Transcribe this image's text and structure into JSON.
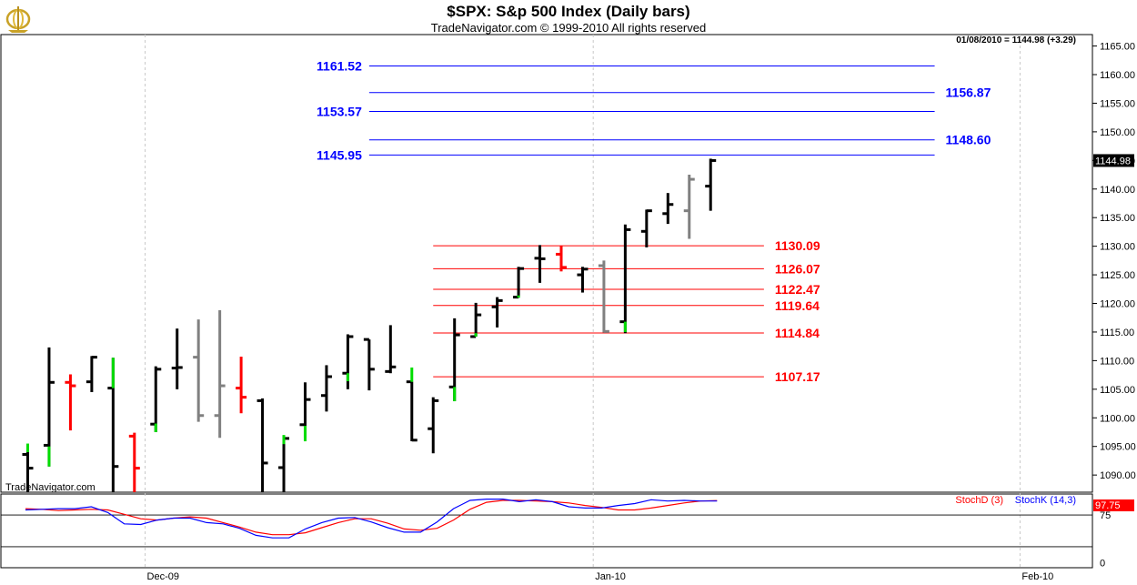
{
  "header": {
    "title": "$SPX:  S&p 500 Index  (Daily bars)",
    "subtitle": "TradeNavigator.com © 1999-2010 All rights reserved",
    "status": "01/08/2010 = 1144.98 (+3.29)",
    "watermark": "TradeNavigator.com",
    "logo_icon": "gyroscope-logo"
  },
  "chart_data": [
    {
      "type": "ohlc",
      "name": "price-panel",
      "ylim": [
        1087,
        1167
      ],
      "y_ticks": [
        "1165.00",
        "1160.00",
        "1155.00",
        "1150.00",
        "1145.00",
        "1140.00",
        "1135.00",
        "1130.00",
        "1125.00",
        "1120.00",
        "1115.00",
        "1110.00",
        "1105.00",
        "1100.00",
        "1095.00",
        "1090.00"
      ],
      "last_price_label": "1144.98",
      "x_labels": [
        {
          "label": "Dec-09",
          "bar": 5.5
        },
        {
          "label": "Jan-10",
          "bar": 26.5
        },
        {
          "label": "Feb-10",
          "bar": 46.5
        }
      ],
      "bars": [
        {
          "o": 1093.6,
          "h": 1094.8,
          "l": 1087,
          "c": 1091.2,
          "color": "#000000"
        },
        {
          "o": 1095.2,
          "h": 1112.3,
          "l": 1091.5,
          "c": 1106.2,
          "color": "#000000"
        },
        {
          "o": 1106.2,
          "h": 1107.6,
          "l": 1097.8,
          "c": 1105.6,
          "color": "#ff0000"
        },
        {
          "o": 1106.3,
          "h": 1110.8,
          "l": 1104.5,
          "c": 1110.6,
          "color": "#000000"
        },
        {
          "o": 1105.2,
          "h": 1110.5,
          "l": 1087,
          "c": 1091.5,
          "color": "#000000"
        },
        {
          "o": 1096.8,
          "h": 1097.4,
          "l": 1087,
          "c": 1091.2,
          "color": "#ff0000"
        },
        {
          "o": 1098.9,
          "h": 1109.0,
          "l": 1097.5,
          "c": 1108.5,
          "color": "#000000"
        },
        {
          "o": 1108.7,
          "h": 1115.6,
          "l": 1105.0,
          "c": 1108.8,
          "color": "#000000"
        },
        {
          "o": 1110.6,
          "h": 1117.2,
          "l": 1099.3,
          "c": 1100.4,
          "color": "#808080"
        },
        {
          "o": 1100.4,
          "h": 1118.8,
          "l": 1096.5,
          "c": 1105.6,
          "color": "#808080"
        },
        {
          "o": 1105.2,
          "h": 1110.7,
          "l": 1100.8,
          "c": 1103.6,
          "color": "#ff0000"
        },
        {
          "o": 1103.0,
          "h": 1103.4,
          "l": 1087,
          "c": 1092.1,
          "color": "#000000"
        },
        {
          "o": 1091.3,
          "h": 1096.9,
          "l": 1087,
          "c": 1096.4,
          "color": "#000000"
        },
        {
          "o": 1098.8,
          "h": 1106.2,
          "l": 1096.5,
          "c": 1103.2,
          "color": "#000000"
        },
        {
          "o": 1103.9,
          "h": 1109.2,
          "l": 1101.1,
          "c": 1107.2,
          "color": "#000000"
        },
        {
          "o": 1107.8,
          "h": 1114.6,
          "l": 1105.0,
          "c": 1114.2,
          "color": "#000000"
        },
        {
          "o": 1113.7,
          "h": 1113.7,
          "l": 1104.8,
          "c": 1108.5,
          "color": "#000000"
        },
        {
          "o": 1108.1,
          "h": 1116.2,
          "l": 1107.8,
          "c": 1108.9,
          "color": "#000000"
        },
        {
          "o": 1106.3,
          "h": 1106.3,
          "l": 1095.9,
          "c": 1096.1,
          "color": "#000000"
        },
        {
          "o": 1098.1,
          "h": 1103.6,
          "l": 1093.8,
          "c": 1103.0,
          "color": "#000000"
        },
        {
          "o": 1105.4,
          "h": 1117.4,
          "l": 1102.9,
          "c": 1114.5,
          "color": "#000000"
        },
        {
          "o": 1114.2,
          "h": 1120.1,
          "l": 1114.2,
          "c": 1118.0,
          "color": "#000000"
        },
        {
          "o": 1119.4,
          "h": 1121.1,
          "l": 1115.8,
          "c": 1120.5,
          "color": "#000000"
        },
        {
          "o": 1121.1,
          "h": 1126.4,
          "l": 1121.0,
          "c": 1126.1,
          "color": "#000000"
        },
        {
          "o": 1127.9,
          "h": 1130.2,
          "l": 1123.6,
          "c": 1127.8,
          "color": "#000000"
        },
        {
          "o": 1128.6,
          "h": 1130.1,
          "l": 1125.6,
          "c": 1126.3,
          "color": "#ff0000"
        },
        {
          "o": 1125.0,
          "h": 1126.4,
          "l": 1121.9,
          "c": 1126.0,
          "color": "#000000"
        },
        {
          "o": 1126.6,
          "h": 1127.5,
          "l": 1114.9,
          "c": 1115.1,
          "color": "#808080"
        },
        {
          "o": 1116.8,
          "h": 1133.8,
          "l": 1114.8,
          "c": 1132.9,
          "color": "#000000"
        },
        {
          "o": 1132.6,
          "h": 1136.4,
          "l": 1129.8,
          "c": 1136.2,
          "color": "#000000"
        },
        {
          "o": 1135.7,
          "h": 1139.3,
          "l": 1133.9,
          "c": 1137.3,
          "color": "#000000"
        },
        {
          "o": 1136.2,
          "h": 1142.5,
          "l": 1131.3,
          "c": 1141.7,
          "color": "#808080"
        },
        {
          "o": 1140.5,
          "h": 1145.3,
          "l": 1136.2,
          "c": 1144.98,
          "color": "#000000"
        }
      ],
      "green_ticks": [
        {
          "bar": 0,
          "from": 1094,
          "to": 1095.5
        },
        {
          "bar": 1,
          "from": 1091.5,
          "to": 1095
        },
        {
          "bar": 4,
          "from": 1105.2,
          "to": 1110.5
        },
        {
          "bar": 6,
          "from": 1097.5,
          "to": 1099
        },
        {
          "bar": 12,
          "from": 1095.4,
          "to": 1097
        },
        {
          "bar": 13,
          "from": 1095.9,
          "to": 1098.6
        },
        {
          "bar": 15,
          "from": 1106.4,
          "to": 1107.8
        },
        {
          "bar": 18,
          "from": 1106.3,
          "to": 1108.8
        },
        {
          "bar": 20,
          "from": 1102.9,
          "to": 1105.4
        },
        {
          "bar": 21,
          "from": 1114.2,
          "to": 1114.8
        },
        {
          "bar": 23,
          "from": 1121.0,
          "to": 1121.4
        },
        {
          "bar": 28,
          "from": 1115.0,
          "to": 1116.8
        }
      ],
      "projection_levels_blue": [
        {
          "value": 1161.52,
          "label": "1161.52",
          "label_side": "left",
          "from_bar": 16.0,
          "to_bar": 42.5
        },
        {
          "value": 1156.87,
          "label": "1156.87",
          "label_side": "right",
          "from_bar": 16.0,
          "to_bar": 42.5
        },
        {
          "value": 1153.57,
          "label": "1153.57",
          "label_side": "left",
          "from_bar": 16.0,
          "to_bar": 42.5
        },
        {
          "value": 1148.6,
          "label": "1148.60",
          "label_side": "right",
          "from_bar": 16.0,
          "to_bar": 42.5
        },
        {
          "value": 1145.95,
          "label": "1145.95",
          "label_side": "left",
          "from_bar": 16.0,
          "to_bar": 42.5
        }
      ],
      "support_levels_red": [
        {
          "value": 1130.09,
          "label": "1130.09",
          "from_bar": 19.0,
          "to_bar": 34.5
        },
        {
          "value": 1126.07,
          "label": "1126.07",
          "from_bar": 19.0,
          "to_bar": 34.5
        },
        {
          "value": 1122.47,
          "label": "1122.47",
          "from_bar": 19.0,
          "to_bar": 34.5
        },
        {
          "value": 1119.64,
          "label": "1119.64",
          "from_bar": 19.0,
          "to_bar": 34.5
        },
        {
          "value": 1114.84,
          "label": "1114.84",
          "from_bar": 19.0,
          "to_bar": 34.5
        },
        {
          "value": 1107.17,
          "label": "1107.17",
          "from_bar": 19.0,
          "to_bar": 34.5
        }
      ],
      "colors": {
        "blue": "#0000ff",
        "red": "#ff0000",
        "green": "#00dd00",
        "gray": "#808080",
        "black": "#000000",
        "grid": "#c8c8c8"
      }
    },
    {
      "type": "line",
      "name": "stochastic-panel",
      "ylim": [
        -8,
        108
      ],
      "y_ticks": [
        "75",
        "0"
      ],
      "last_value_label": "97.75",
      "reference_lines": [
        75,
        25
      ],
      "series": [
        {
          "name": "StochD (3)",
          "color": "#ff0000",
          "values": [
            85,
            84,
            82,
            83,
            84,
            83,
            76,
            69,
            67,
            70,
            72,
            70,
            63,
            56,
            48,
            44,
            44,
            47,
            55,
            63,
            69,
            69,
            62,
            53,
            51,
            54,
            67,
            84,
            95,
            98,
            98,
            97,
            96,
            94,
            90,
            87,
            83,
            83,
            86,
            90,
            94,
            97,
            97.75
          ]
        },
        {
          "name": "StochK (14,3)",
          "color": "#0000ff",
          "values": [
            83,
            84,
            85,
            85,
            88,
            79,
            61,
            60,
            67,
            70,
            70,
            63,
            61,
            54,
            43,
            39,
            39,
            53,
            63,
            70,
            71,
            64,
            55,
            48,
            48,
            64,
            85,
            98,
            100,
            100,
            96,
            99,
            96,
            88,
            86,
            86,
            90,
            93,
            99,
            97,
            98,
            97,
            97
          ]
        }
      ]
    }
  ]
}
